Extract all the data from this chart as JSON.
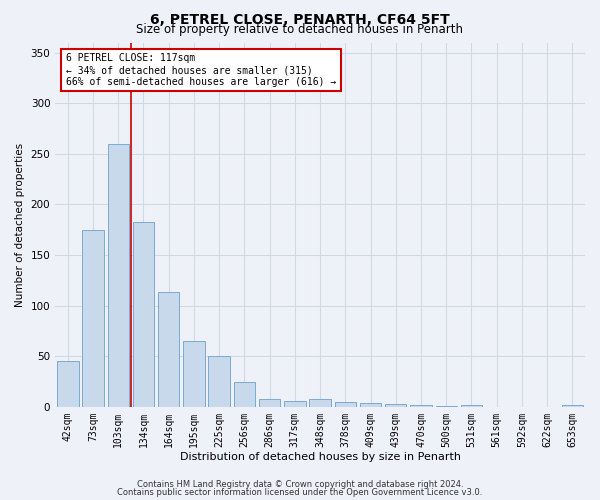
{
  "title": "6, PETREL CLOSE, PENARTH, CF64 5FT",
  "subtitle": "Size of property relative to detached houses in Penarth",
  "xlabel": "Distribution of detached houses by size in Penarth",
  "ylabel": "Number of detached properties",
  "categories": [
    "42sqm",
    "73sqm",
    "103sqm",
    "134sqm",
    "164sqm",
    "195sqm",
    "225sqm",
    "256sqm",
    "286sqm",
    "317sqm",
    "348sqm",
    "378sqm",
    "409sqm",
    "439sqm",
    "470sqm",
    "500sqm",
    "531sqm",
    "561sqm",
    "592sqm",
    "622sqm",
    "653sqm"
  ],
  "values": [
    45,
    175,
    260,
    183,
    113,
    65,
    50,
    25,
    8,
    6,
    8,
    5,
    4,
    3,
    2,
    1,
    2,
    0,
    0,
    0,
    2
  ],
  "bar_color": "#c9d9ec",
  "bar_edge_color": "#7aaad0",
  "grid_color": "#d0d8e8",
  "background_color": "#eef2f8",
  "vline_x": 2.5,
  "vline_color": "#cc0000",
  "annotation_text": "6 PETREL CLOSE: 117sqm\n← 34% of detached houses are smaller (315)\n66% of semi-detached houses are larger (616) →",
  "annotation_box_color": "#ffffff",
  "annotation_box_edge": "#cc0000",
  "footer1": "Contains HM Land Registry data © Crown copyright and database right 2024.",
  "footer2": "Contains public sector information licensed under the Open Government Licence v3.0.",
  "ylim": [
    0,
    360
  ],
  "yticks": [
    0,
    50,
    100,
    150,
    200,
    250,
    300,
    350
  ],
  "title_fontsize": 10,
  "subtitle_fontsize": 8.5,
  "xlabel_fontsize": 8,
  "ylabel_fontsize": 7.5,
  "tick_fontsize": 7,
  "ytick_fontsize": 7.5,
  "annot_fontsize": 7,
  "footer_fontsize": 6
}
